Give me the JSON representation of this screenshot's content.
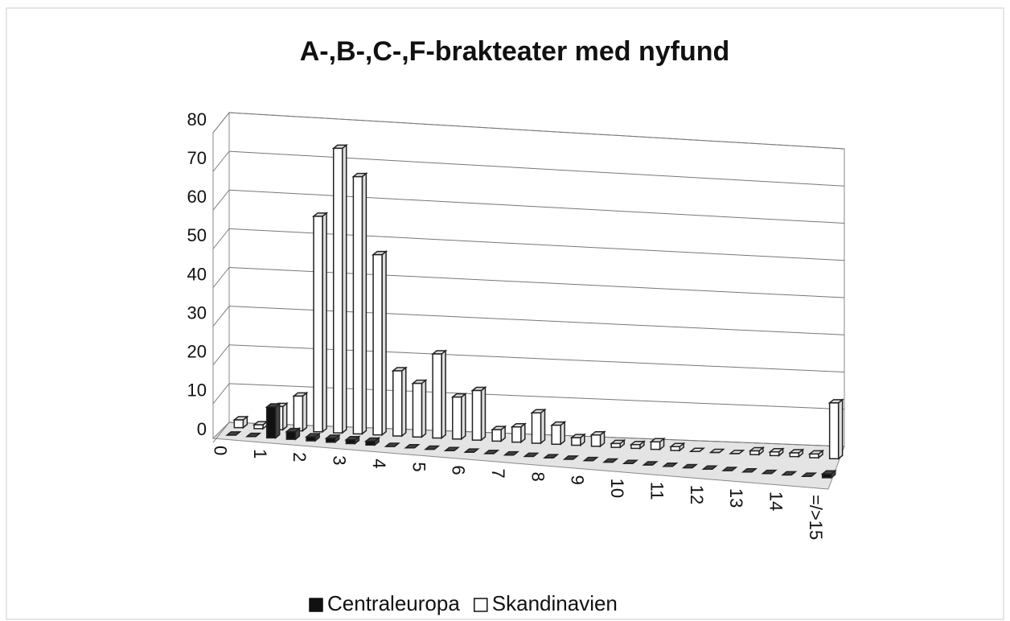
{
  "chart_data": {
    "type": "bar3d",
    "title": "A-,B-,C-,F-brakteater med nyfund",
    "categories": [
      "0",
      null,
      "1",
      null,
      "2",
      null,
      "3",
      null,
      "4",
      null,
      "5",
      null,
      "6",
      null,
      "7",
      null,
      "8",
      null,
      "9",
      null,
      "10",
      null,
      "11",
      null,
      "12",
      null,
      "13",
      null,
      "14",
      null,
      "=/>15"
    ],
    "series": [
      {
        "name": "Centraleuropa",
        "color": "#111111",
        "values": [
          0,
          0,
          8,
          2,
          1,
          1,
          1,
          1,
          0,
          0,
          0,
          0,
          0,
          0,
          0,
          0,
          0,
          0,
          0,
          0,
          0,
          0,
          0,
          0,
          0,
          0,
          0,
          0,
          0,
          0,
          1
        ]
      },
      {
        "name": "Skandinavien",
        "color": "#ffffff",
        "values": [
          2,
          1,
          6,
          9,
          56,
          74,
          67,
          47,
          17,
          14,
          22,
          11,
          13,
          3,
          4,
          8,
          5,
          2,
          3,
          1,
          1,
          2,
          1,
          0,
          0,
          0,
          1,
          1,
          1,
          1,
          15
        ]
      }
    ],
    "ylim": [
      0,
      80
    ],
    "yticks": [
      0,
      10,
      20,
      30,
      40,
      50,
      60,
      70,
      80
    ],
    "grid": true,
    "legend": "bottom"
  }
}
